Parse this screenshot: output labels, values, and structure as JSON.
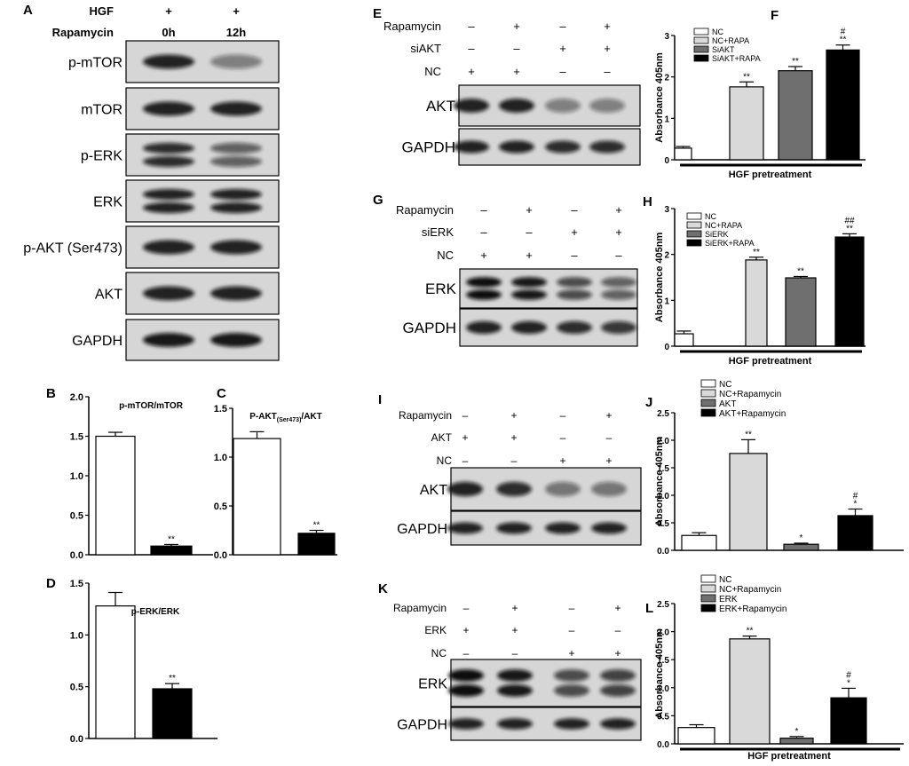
{
  "panels": {
    "A": {
      "letter": "A",
      "conditions": [
        {
          "label": "HGF",
          "values": [
            "+",
            "+"
          ]
        },
        {
          "label": "Rapamycin",
          "values": [
            "0h",
            "12h"
          ]
        }
      ],
      "blots": [
        {
          "label": "p-mTOR",
          "bands": [
            0.9,
            0.45
          ]
        },
        {
          "label": "mTOR",
          "bands": [
            0.9,
            0.9
          ]
        },
        {
          "label": "p-ERK",
          "bands": [
            0.85,
            0.6
          ],
          "double": true
        },
        {
          "label": "ERK",
          "bands": [
            0.9,
            0.9
          ],
          "double": true
        },
        {
          "label": "p-AKT (Ser473)",
          "bands": [
            0.9,
            0.9
          ]
        },
        {
          "label": "AKT",
          "bands": [
            0.9,
            0.9
          ]
        },
        {
          "label": "GAPDH",
          "bands": [
            0.95,
            0.95
          ]
        }
      ]
    },
    "E": {
      "letter": "E",
      "conditions": [
        {
          "label": "Rapamycin",
          "values": [
            "–",
            "+",
            "–",
            "+"
          ]
        },
        {
          "label": "siAKT",
          "values": [
            "–",
            "–",
            "+",
            "+"
          ]
        },
        {
          "label": "NC",
          "values": [
            "+",
            "+",
            "–",
            "–"
          ]
        }
      ],
      "blots": [
        {
          "label": "AKT",
          "bands": [
            0.9,
            0.9,
            0.45,
            0.45
          ]
        },
        {
          "label": "GAPDH",
          "bands": [
            0.9,
            0.9,
            0.85,
            0.85
          ]
        }
      ]
    },
    "G": {
      "letter": "G",
      "conditions": [
        {
          "label": "Rapamycin",
          "values": [
            "–",
            "+",
            "–",
            "+"
          ]
        },
        {
          "label": "siERK",
          "values": [
            "–",
            "–",
            "+",
            "+"
          ]
        },
        {
          "label": "NC",
          "values": [
            "+",
            "+",
            "–",
            "–"
          ]
        }
      ],
      "blots": [
        {
          "label": "ERK",
          "bands": [
            1.0,
            0.95,
            0.7,
            0.6
          ],
          "double": true
        },
        {
          "label": "GAPDH",
          "bands": [
            0.9,
            0.9,
            0.85,
            0.8
          ]
        }
      ]
    },
    "I": {
      "letter": "I",
      "conditions": [
        {
          "label": "Rapamycin",
          "values": [
            "–",
            "+",
            "–",
            "+"
          ]
        },
        {
          "label": "AKT",
          "values": [
            "+",
            "+",
            "–",
            "–"
          ]
        },
        {
          "label": "NC",
          "values": [
            "–",
            "–",
            "+",
            "+"
          ]
        }
      ],
      "blots": [
        {
          "label": "AKT",
          "bands": [
            0.9,
            0.85,
            0.5,
            0.5
          ]
        },
        {
          "label": "GAPDH",
          "bands": [
            0.9,
            0.9,
            0.9,
            0.9
          ]
        }
      ]
    },
    "K": {
      "letter": "K",
      "conditions": [
        {
          "label": "Rapamycin",
          "values": [
            "–",
            "+",
            "–",
            "+"
          ]
        },
        {
          "label": "ERK",
          "values": [
            "+",
            "+",
            "–",
            "–"
          ]
        },
        {
          "label": "NC",
          "values": [
            "–",
            "–",
            "+",
            "+"
          ]
        }
      ],
      "blots": [
        {
          "label": "ERK",
          "bands": [
            1.0,
            0.95,
            0.7,
            0.75
          ],
          "double": true
        },
        {
          "label": "GAPDH",
          "bands": [
            0.9,
            0.9,
            0.9,
            0.9
          ]
        }
      ]
    }
  },
  "chart_data": [
    {
      "id": "B",
      "letter": "B",
      "type": "bar",
      "title": "p-mTOR/mTOR",
      "ylim": [
        0,
        2.0
      ],
      "yticks": [
        "0.0",
        "0.5",
        "1.0",
        "1.5",
        "2.0"
      ],
      "values": [
        1.5,
        0.11
      ],
      "errors": [
        0.05,
        0.02
      ],
      "colors": [
        "#ffffff",
        "#000000"
      ],
      "annotations": [
        "",
        "**"
      ]
    },
    {
      "id": "C",
      "letter": "C",
      "type": "bar",
      "title": "P-AKT(Ser473)/AKT",
      "title_main": "P-AKT",
      "title_sub": "(Ser473)",
      "title_end": "/AKT",
      "ylim": [
        0,
        1.5
      ],
      "yticks": [
        "0.0",
        "0.5",
        "1.0",
        "1.5"
      ],
      "values": [
        1.19,
        0.22
      ],
      "errors": [
        0.07,
        0.03
      ],
      "colors": [
        "#ffffff",
        "#000000"
      ],
      "annotations": [
        "",
        "**"
      ]
    },
    {
      "id": "D",
      "letter": "D",
      "type": "bar",
      "title": "p-ERK/ERK",
      "ylim": [
        0,
        1.5
      ],
      "yticks": [
        "0.0",
        "0.5",
        "1.0",
        "1.5"
      ],
      "values": [
        1.28,
        0.48
      ],
      "errors": [
        0.13,
        0.05
      ],
      "colors": [
        "#ffffff",
        "#000000"
      ],
      "annotations": [
        "",
        "**"
      ]
    },
    {
      "id": "F",
      "letter": "F",
      "type": "bar",
      "ylabel": "Absorbance 405nm",
      "xlabel": "HGF pretreatment",
      "ylim": [
        0,
        3
      ],
      "yticks": [
        "0",
        "1",
        "2",
        "3"
      ],
      "categories": [
        "NC",
        "NC+RAPA",
        "SiAKT",
        "SiAKT+RAPA"
      ],
      "values": [
        0.28,
        1.76,
        2.15,
        2.65
      ],
      "errors": [
        0.04,
        0.12,
        0.1,
        0.12
      ],
      "colors": [
        "#ffffff",
        "#d9d9d9",
        "#6f6f6f",
        "#000000"
      ],
      "annotations": [
        "",
        "**",
        "**",
        "#\n**"
      ],
      "legend": "top-left"
    },
    {
      "id": "H",
      "letter": "H",
      "type": "bar",
      "ylabel": "Absorbance 405nm",
      "xlabel": "HGF pretreatment",
      "ylim": [
        0,
        3
      ],
      "yticks": [
        "0",
        "1",
        "2",
        "3"
      ],
      "categories": [
        "NC",
        "NC+RAPA",
        "SiERK",
        "SiERK+RAPA"
      ],
      "values": [
        0.27,
        1.88,
        1.49,
        2.38
      ],
      "errors": [
        0.06,
        0.06,
        0.03,
        0.07
      ],
      "colors": [
        "#ffffff",
        "#d9d9d9",
        "#6f6f6f",
        "#000000"
      ],
      "annotations": [
        "",
        "**",
        "**",
        "##\n**"
      ],
      "legend": "top-left"
    },
    {
      "id": "J",
      "letter": "J",
      "type": "bar",
      "ylabel": "Absorbance 405nm",
      "xlabel": "",
      "ylim": [
        0,
        2.5
      ],
      "yticks": [
        "0.0",
        "0.5",
        "1.0",
        "1.5",
        "2.0",
        "2.5"
      ],
      "categories": [
        "NC",
        "NC+Rapamycin",
        "AKT",
        "AKT+Rapamycin"
      ],
      "values": [
        0.27,
        1.76,
        0.11,
        0.63
      ],
      "errors": [
        0.05,
        0.25,
        0.02,
        0.12
      ],
      "colors": [
        "#ffffff",
        "#d9d9d9",
        "#6f6f6f",
        "#000000"
      ],
      "annotations": [
        "",
        "**",
        "*",
        "#\n*"
      ],
      "legend": "top-left"
    },
    {
      "id": "L",
      "letter": "L",
      "type": "bar",
      "ylabel": "Absorbance 405nm",
      "xlabel": "HGF pretreatment",
      "ylim": [
        0,
        2.5
      ],
      "yticks": [
        "0.0",
        "0.5",
        "1.0",
        "1.5",
        "2.0",
        "2.5"
      ],
      "categories": [
        "NC",
        "NC+Rapamycin",
        "ERK",
        "ERK+Rapamycin"
      ],
      "values": [
        0.29,
        1.87,
        0.1,
        0.82
      ],
      "errors": [
        0.05,
        0.05,
        0.03,
        0.17
      ],
      "colors": [
        "#ffffff",
        "#d9d9d9",
        "#6f6f6f",
        "#000000"
      ],
      "annotations": [
        "",
        "**",
        "*",
        "#\n*"
      ],
      "legend": "top-left"
    }
  ]
}
